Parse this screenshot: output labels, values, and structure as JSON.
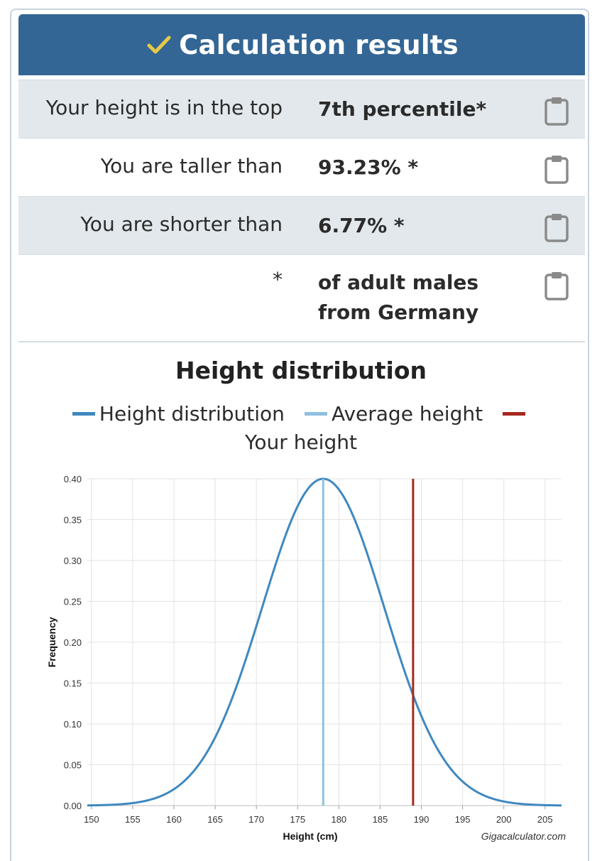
{
  "header": {
    "title": "Calculation results",
    "icon": "check-icon",
    "color": "#336694",
    "check_color": "#e5c84a"
  },
  "results": [
    {
      "label": "Your height is in the top",
      "value": "7th percentile*"
    },
    {
      "label": "You are taller than",
      "value": "93.23% *"
    },
    {
      "label": "You are shorter than",
      "value": "6.77% *"
    },
    {
      "label": "*",
      "value_line1": "of adult males",
      "value_line2": "from Germany"
    }
  ],
  "chart_title": "Height distribution",
  "legend": {
    "distribution": "Height distribution",
    "average": "Average height",
    "yours": "Your height"
  },
  "credit": "Gigacalculator.com",
  "colors": {
    "distribution": "#3f88c0",
    "average": "#8fc0de",
    "yours": "#a5281f"
  },
  "chart_data": {
    "type": "line",
    "title": "Height distribution",
    "xlabel": "Height (cm)",
    "ylabel": "Frequency",
    "xlim": [
      149.5,
      207
    ],
    "ylim": [
      0,
      0.4
    ],
    "x_ticks": [
      150,
      155,
      160,
      165,
      170,
      175,
      180,
      185,
      190,
      195,
      200,
      205
    ],
    "y_ticks": [
      0.0,
      0.05,
      0.1,
      0.15,
      0.2,
      0.25,
      0.3,
      0.35,
      0.4
    ],
    "distribution": {
      "name": "Height distribution",
      "mean": 178.1,
      "sd": 7.4,
      "peak": 0.4
    },
    "series": [
      {
        "name": "Height distribution",
        "x": [
          150,
          155,
          160,
          165,
          170,
          175,
          178.1,
          180,
          185,
          190,
          195,
          200,
          205,
          207
        ],
        "values": [
          0.001,
          0.003,
          0.02,
          0.084,
          0.22,
          0.365,
          0.4,
          0.387,
          0.258,
          0.11,
          0.03,
          0.005,
          0.001,
          0.0
        ]
      }
    ],
    "average_height": 178.1,
    "your_height": 189.0
  }
}
